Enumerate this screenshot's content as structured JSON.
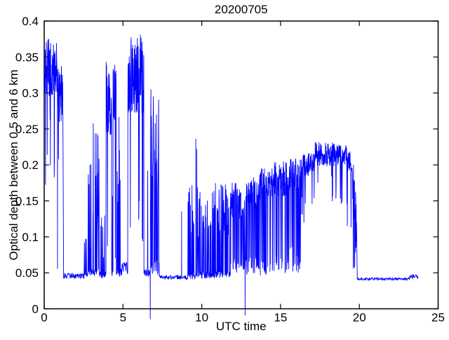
{
  "chart_data": {
    "type": "line",
    "title": "20200705",
    "xlabel": "UTC time",
    "ylabel": "Optical depth between 0.5 and 6 km",
    "xlim": [
      0,
      25
    ],
    "ylim": [
      0,
      0.4
    ],
    "xticks": [
      0,
      5,
      10,
      15,
      20,
      25
    ],
    "xtick_labels": [
      "0",
      "5",
      "10",
      "15",
      "20",
      "25"
    ],
    "yticks": [
      0,
      0.05,
      0.1,
      0.15,
      0.2,
      0.25,
      0.3,
      0.35,
      0.4
    ],
    "ytick_labels": [
      "0",
      "0.05",
      "0.1",
      "0.15",
      "0.2",
      "0.25",
      "0.3",
      "0.35",
      "0.4"
    ],
    "grid": false,
    "legend": null,
    "line_color": "#0000ff",
    "axis_color": "#000000",
    "background_color": "#ffffff",
    "data_start_time": 0.0,
    "data_end_time": 23.72,
    "seed": 20200705,
    "segments": [
      {
        "mode": "band",
        "t0": 0.0,
        "t1": 0.83,
        "lo": 0.295,
        "hi": 0.375,
        "dipP": 0.05,
        "dipLo": 0.16,
        "dipHi": 0.27,
        "dt": 0.012
      },
      {
        "mode": "vline",
        "t": 0.845,
        "v0": 0.3,
        "v1": 0.056
      },
      {
        "mode": "band",
        "t0": 0.86,
        "t1": 1.18,
        "lo": 0.26,
        "hi": 0.345,
        "dipP": 0.04,
        "dipLo": 0.18,
        "dipHi": 0.24,
        "dt": 0.012
      },
      {
        "mode": "ramp",
        "t0": 1.18,
        "t1": 1.23,
        "v0": 0.3,
        "v1": 0.047,
        "amp": 0
      },
      {
        "mode": "flat",
        "t0": 1.23,
        "t1": 2.55,
        "base": 0.046,
        "amp": 0.004,
        "dt": 0.02
      },
      {
        "mode": "spikes",
        "t0": 2.55,
        "t1": 3.1,
        "base": 0.051,
        "amp": 0.006,
        "p": 0.3,
        "lo": 0.08,
        "hi": 0.22,
        "dt": 0.014
      },
      {
        "mode": "spikes",
        "t0": 3.1,
        "t1": 3.5,
        "base": 0.051,
        "amp": 0.006,
        "p": 0.38,
        "lo": 0.1,
        "hi": 0.26,
        "dt": 0.014
      },
      {
        "mode": "spikes",
        "t0": 3.5,
        "t1": 3.92,
        "base": 0.048,
        "amp": 0.005,
        "p": 0.12,
        "lo": 0.07,
        "hi": 0.13,
        "dt": 0.014
      },
      {
        "mode": "band",
        "t0": 3.92,
        "t1": 4.28,
        "lo": 0.24,
        "hi": 0.345,
        "dipP": 0.18,
        "dipLo": 0.05,
        "dipHi": 0.15,
        "dt": 0.012
      },
      {
        "mode": "spikes",
        "t0": 4.28,
        "t1": 4.37,
        "base": 0.052,
        "amp": 0.006,
        "p": 0.25,
        "lo": 0.1,
        "hi": 0.2,
        "dt": 0.014
      },
      {
        "mode": "band",
        "t0": 4.37,
        "t1": 4.58,
        "lo": 0.26,
        "hi": 0.345,
        "dipP": 0.15,
        "dipLo": 0.05,
        "dipHi": 0.2,
        "dt": 0.012
      },
      {
        "mode": "spikes",
        "t0": 4.58,
        "t1": 4.92,
        "base": 0.051,
        "amp": 0.006,
        "p": 0.3,
        "lo": 0.12,
        "hi": 0.3,
        "dt": 0.014
      },
      {
        "mode": "flat",
        "t0": 4.92,
        "t1": 5.3,
        "base": 0.056,
        "amp": 0.009,
        "dt": 0.02
      },
      {
        "mode": "band",
        "t0": 5.3,
        "t1": 6.33,
        "lo": 0.27,
        "hi": 0.382,
        "dipP": 0.12,
        "dipLo": 0.05,
        "dipHi": 0.2,
        "dt": 0.012
      },
      {
        "mode": "spikes",
        "t0": 6.33,
        "t1": 6.7,
        "base": 0.05,
        "amp": 0.005,
        "p": 0.15,
        "lo": 0.1,
        "hi": 0.23,
        "dt": 0.014
      },
      {
        "mode": "vline",
        "t": 6.73,
        "v0": 0.048,
        "v1": -0.014
      },
      {
        "mode": "spikes",
        "t0": 6.76,
        "t1": 7.3,
        "base": 0.06,
        "amp": 0.012,
        "p": 0.45,
        "lo": 0.15,
        "hi": 0.305,
        "dt": 0.014
      },
      {
        "mode": "flat",
        "t0": 7.3,
        "t1": 8.68,
        "base": 0.044,
        "amp": 0.003,
        "dt": 0.02
      },
      {
        "mode": "vline",
        "t": 8.72,
        "v0": 0.043,
        "v1": 0.135
      },
      {
        "mode": "flat",
        "t0": 8.76,
        "t1": 9.1,
        "base": 0.043,
        "amp": 0.003,
        "dt": 0.02
      },
      {
        "mode": "spikes",
        "t0": 9.1,
        "t1": 9.58,
        "base": 0.046,
        "amp": 0.005,
        "p": 0.28,
        "lo": 0.09,
        "hi": 0.19,
        "dt": 0.014
      },
      {
        "mode": "vline",
        "t": 9.62,
        "v0": 0.046,
        "v1": 0.236
      },
      {
        "mode": "vline",
        "t": 9.68,
        "v0": 0.046,
        "v1": 0.222
      },
      {
        "mode": "spikes",
        "t0": 9.72,
        "t1": 10.8,
        "base": 0.047,
        "amp": 0.005,
        "p": 0.42,
        "lo": 0.09,
        "hi": 0.17,
        "dt": 0.014
      },
      {
        "mode": "spikes",
        "t0": 10.8,
        "t1": 11.8,
        "base": 0.048,
        "amp": 0.005,
        "p": 0.48,
        "lo": 0.1,
        "hi": 0.175,
        "dt": 0.014
      },
      {
        "mode": "band",
        "t0": 11.8,
        "t1": 12.72,
        "lo": 0.125,
        "hi": 0.175,
        "dipP": 0.4,
        "dipLo": 0.046,
        "dipHi": 0.07,
        "dt": 0.013
      },
      {
        "mode": "vline",
        "t": 12.75,
        "v0": 0.05,
        "v1": -0.009
      },
      {
        "mode": "band",
        "t0": 12.78,
        "t1": 13.6,
        "lo": 0.14,
        "hi": 0.185,
        "dipP": 0.34,
        "dipLo": 0.046,
        "dipHi": 0.075,
        "dt": 0.013
      },
      {
        "mode": "band",
        "t0": 13.6,
        "t1": 14.6,
        "lo": 0.15,
        "hi": 0.195,
        "dipP": 0.33,
        "dipLo": 0.046,
        "dipHi": 0.075,
        "dt": 0.013
      },
      {
        "mode": "band",
        "t0": 14.6,
        "t1": 15.6,
        "lo": 0.155,
        "hi": 0.205,
        "dipP": 0.3,
        "dipLo": 0.046,
        "dipHi": 0.08,
        "dt": 0.013
      },
      {
        "mode": "band",
        "t0": 15.6,
        "t1": 16.3,
        "lo": 0.165,
        "hi": 0.21,
        "dipP": 0.28,
        "dipLo": 0.046,
        "dipHi": 0.09,
        "dt": 0.013
      },
      {
        "mode": "band",
        "t0": 16.3,
        "t1": 17.2,
        "lo": 0.185,
        "hi": 0.217,
        "dipP": 0.1,
        "dipLo": 0.1,
        "dipHi": 0.16,
        "dt": 0.013
      },
      {
        "mode": "band",
        "t0": 17.2,
        "t1": 18.6,
        "lo": 0.198,
        "hi": 0.232,
        "dipP": 0.05,
        "dipLo": 0.15,
        "dipHi": 0.185,
        "dt": 0.013
      },
      {
        "mode": "band",
        "t0": 18.6,
        "t1": 19.2,
        "lo": 0.198,
        "hi": 0.228,
        "dipP": 0.07,
        "dipLo": 0.14,
        "dipHi": 0.18,
        "dt": 0.013
      },
      {
        "mode": "band",
        "t0": 19.2,
        "t1": 19.55,
        "lo": 0.19,
        "hi": 0.222,
        "dipP": 0.2,
        "dipLo": 0.1,
        "dipHi": 0.16,
        "dt": 0.013
      },
      {
        "mode": "band",
        "t0": 19.55,
        "t1": 19.82,
        "lo": 0.12,
        "hi": 0.21,
        "dipP": 0.35,
        "dipLo": 0.055,
        "dipHi": 0.1,
        "dt": 0.013
      },
      {
        "mode": "ramp",
        "t0": 19.82,
        "t1": 19.87,
        "v0": 0.12,
        "v1": 0.041,
        "amp": 0
      },
      {
        "mode": "flat",
        "t0": 19.87,
        "t1": 23.2,
        "base": 0.0415,
        "amp": 0.002,
        "dt": 0.02
      },
      {
        "mode": "flat",
        "t0": 23.2,
        "t1": 23.72,
        "base": 0.0445,
        "amp": 0.0035,
        "dt": 0.02
      }
    ]
  }
}
